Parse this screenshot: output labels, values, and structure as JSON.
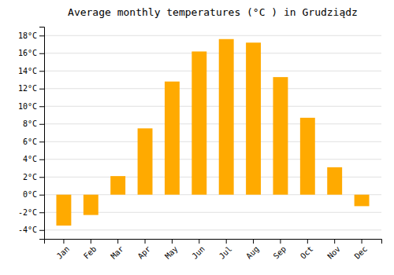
{
  "chart_data": {
    "type": "bar",
    "title": "Average monthly temperatures (°C ) in Grudziądz",
    "categories": [
      "Jan",
      "Feb",
      "Mar",
      "Apr",
      "May",
      "Jun",
      "Jul",
      "Aug",
      "Sep",
      "Oct",
      "Nov",
      "Dec"
    ],
    "values": [
      -3.5,
      -2.3,
      2.1,
      7.5,
      12.8,
      16.2,
      17.6,
      17.2,
      13.3,
      8.7,
      3.1,
      -1.3
    ],
    "color": "#FFAA00",
    "ylim": [
      -5,
      19
    ],
    "yticks": [
      {
        "value": -4,
        "label": "-4°C"
      },
      {
        "value": -2,
        "label": "-2°C"
      },
      {
        "value": 0,
        "label": "0°C"
      },
      {
        "value": 2,
        "label": "2°C"
      },
      {
        "value": 4,
        "label": "4°C"
      },
      {
        "value": 6,
        "label": "6°C"
      },
      {
        "value": 8,
        "label": "8°C"
      },
      {
        "value": 10,
        "label": "10°C"
      },
      {
        "value": 12,
        "label": "12°C"
      },
      {
        "value": 14,
        "label": "14°C"
      },
      {
        "value": 16,
        "label": "16°C"
      },
      {
        "value": 18,
        "label": "18°C"
      }
    ],
    "grid": true
  }
}
